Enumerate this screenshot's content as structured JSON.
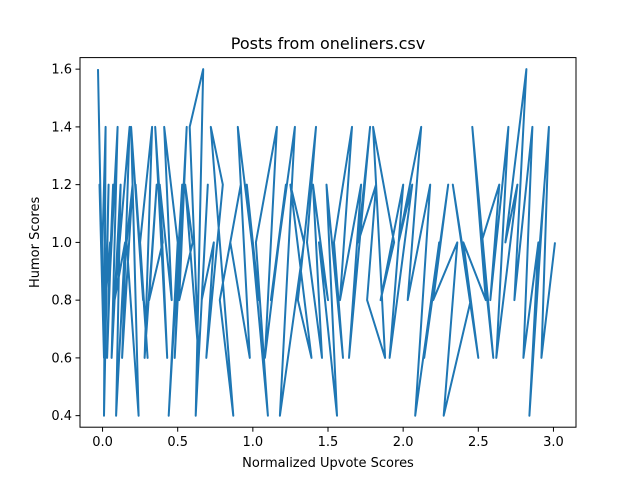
{
  "chart_data": {
    "type": "line",
    "title": "Posts from oneliners.csv",
    "xlabel": "Normalized Upvote Scores",
    "ylabel": "Humor Scores",
    "xlim": [
      -0.15,
      3.15
    ],
    "ylim": [
      0.36,
      1.64
    ],
    "xticks": [
      0.0,
      0.5,
      1.0,
      1.5,
      2.0,
      2.5,
      3.0
    ],
    "xtick_labels": [
      "0.0",
      "0.5",
      "1.0",
      "1.5",
      "2.0",
      "2.5",
      "3.0"
    ],
    "yticks": [
      0.4,
      0.6,
      0.8,
      1.0,
      1.2,
      1.4,
      1.6
    ],
    "ytick_labels": [
      "0.4",
      "0.6",
      "0.8",
      "1.0",
      "1.2",
      "1.4",
      "1.6"
    ],
    "grid": false,
    "legend": "none",
    "series": [
      {
        "color": "#1f77b4",
        "x": [
          -0.03,
          0.0,
          -0.02,
          0.01,
          0.0,
          0.02,
          0.01,
          0.04,
          0.02,
          0.05,
          0.03,
          0.07,
          0.04,
          0.1,
          0.06,
          0.12,
          0.09,
          0.15,
          0.08,
          0.18,
          0.13,
          0.2,
          0.16,
          0.24,
          0.19,
          0.27,
          0.22,
          0.3,
          0.25,
          0.33,
          0.28,
          0.36,
          0.31,
          0.4,
          0.35,
          0.43,
          0.38,
          0.46,
          0.41,
          0.5,
          0.44,
          0.53,
          0.48,
          0.56,
          0.51,
          0.6,
          0.55,
          0.64,
          0.58,
          0.67,
          0.62,
          0.7,
          0.66,
          0.74,
          0.69,
          0.8,
          0.72,
          0.87,
          0.78,
          0.92,
          0.85,
          0.98,
          0.9,
          1.04,
          0.96,
          1.1,
          1.02,
          1.16,
          1.08,
          1.22,
          1.12,
          1.28,
          1.18,
          1.34,
          1.25,
          1.39,
          1.3,
          1.42,
          1.36,
          1.46,
          1.4,
          1.5,
          1.44,
          1.56,
          1.49,
          1.6,
          1.54,
          1.66,
          1.58,
          1.72,
          1.64,
          1.78,
          1.7,
          1.82,
          1.76,
          1.88,
          1.8,
          1.94,
          1.85,
          2.0,
          1.91,
          2.06,
          1.97,
          2.12,
          2.03,
          2.18,
          2.08,
          2.24,
          2.14,
          2.3,
          2.2,
          2.36,
          2.27,
          2.45,
          2.33,
          2.5,
          2.4,
          2.55,
          2.46,
          2.6,
          2.52,
          2.64,
          2.58,
          2.7,
          2.62,
          2.76,
          2.68,
          2.82,
          2.74,
          2.86,
          2.8,
          2.9,
          2.84,
          2.94,
          2.88,
          2.97,
          2.92,
          3.01
        ],
        "y": [
          1.6,
          0.8,
          1.2,
          0.6,
          1.0,
          1.4,
          0.4,
          1.2,
          0.8,
          1.0,
          0.6,
          1.2,
          0.8,
          1.4,
          0.6,
          1.2,
          0.4,
          1.0,
          0.8,
          1.4,
          0.6,
          1.2,
          1.0,
          0.4,
          1.4,
          0.8,
          1.2,
          0.6,
          1.0,
          1.4,
          0.6,
          1.2,
          0.8,
          1.0,
          1.4,
          0.6,
          1.2,
          0.8,
          1.4,
          1.0,
          0.4,
          1.2,
          0.6,
          1.4,
          0.8,
          1.0,
          1.2,
          0.6,
          1.4,
          1.6,
          0.4,
          1.2,
          0.8,
          1.0,
          0.6,
          1.2,
          1.4,
          0.4,
          0.8,
          1.2,
          1.0,
          0.6,
          1.4,
          0.8,
          1.2,
          0.4,
          1.0,
          1.4,
          0.6,
          1.2,
          0.8,
          1.4,
          0.4,
          1.0,
          1.2,
          0.6,
          0.8,
          1.4,
          1.0,
          0.6,
          1.2,
          0.8,
          1.0,
          0.4,
          1.2,
          0.6,
          1.0,
          1.4,
          0.8,
          1.2,
          0.6,
          1.4,
          1.0,
          1.2,
          0.8,
          0.6,
          1.4,
          1.0,
          0.8,
          1.2,
          0.6,
          1.2,
          1.0,
          1.4,
          0.8,
          1.2,
          0.4,
          1.0,
          0.6,
          1.2,
          0.8,
          1.0,
          0.4,
          0.8,
          1.2,
          0.6,
          1.0,
          0.8,
          1.4,
          0.6,
          1.0,
          1.2,
          0.8,
          1.4,
          0.6,
          1.2,
          1.0,
          1.6,
          0.8,
          1.4,
          0.6,
          1.0,
          0.4,
          1.2,
          0.8,
          1.4,
          0.6,
          1.0
        ]
      }
    ]
  }
}
